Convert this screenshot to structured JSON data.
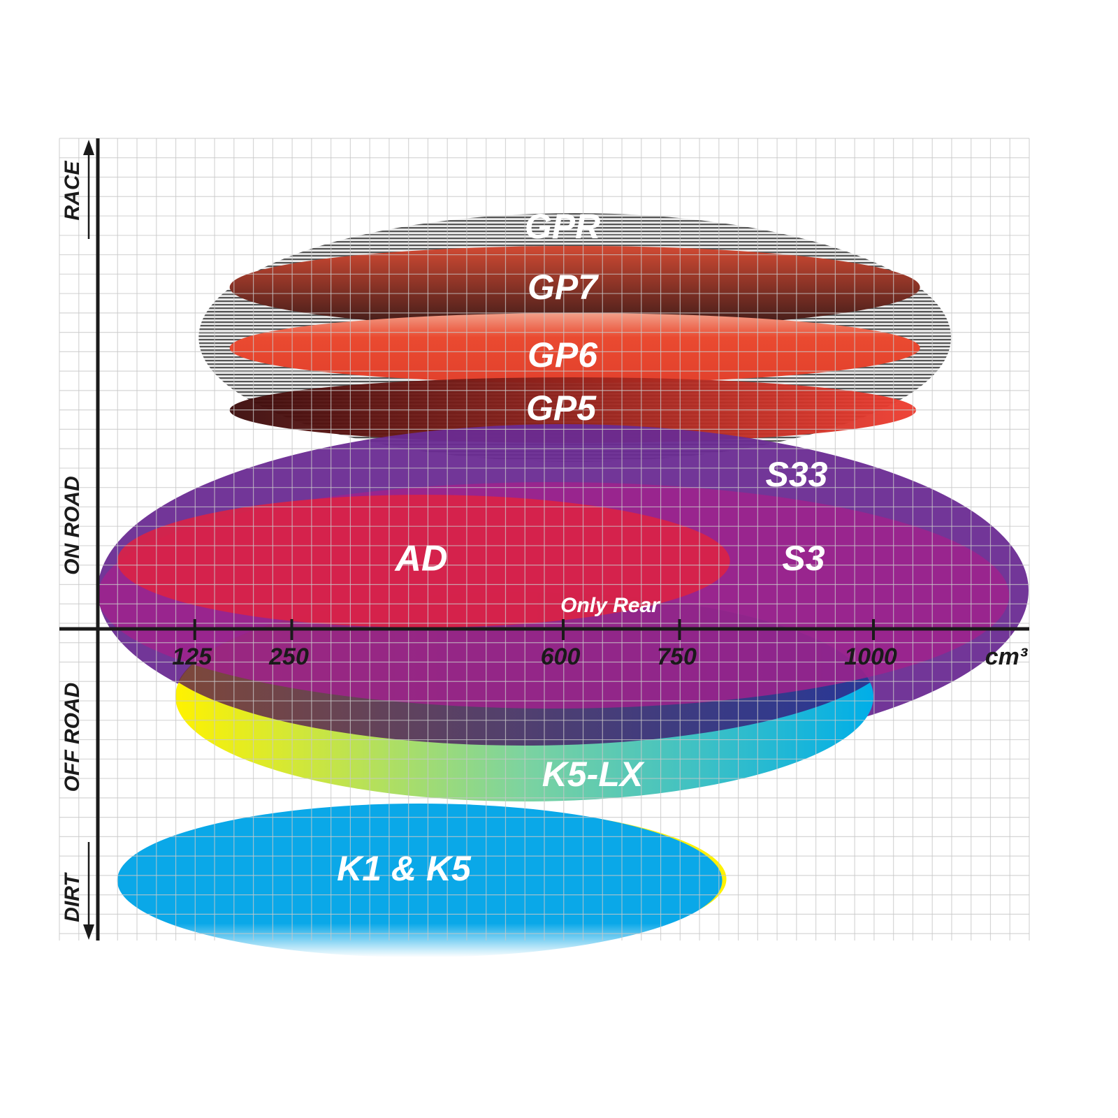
{
  "chart_data": {
    "type": "range-ellipse",
    "xlabel": "cm³",
    "x_ticks": [
      125,
      250,
      600,
      750,
      1000
    ],
    "x_tick_labels": [
      "125",
      "250",
      "600",
      "750",
      "1000"
    ],
    "xlim": [
      0,
      1200
    ],
    "y_levels": [
      "RACE",
      "ON ROAD",
      "OFF ROAD",
      "DIRT"
    ],
    "grid": true,
    "series": [
      {
        "name": "GPR",
        "x_range_cc": [
          130,
          1100
        ],
        "y_level": "RACE",
        "color": "#9a9a9a"
      },
      {
        "name": "GP7",
        "x_range_cc": [
          170,
          1060
        ],
        "y_level": "RACE",
        "color": "#b8422e"
      },
      {
        "name": "GP6",
        "x_range_cc": [
          170,
          1060
        ],
        "y_level": "RACE",
        "color": "#e8432f"
      },
      {
        "name": "GP5",
        "x_range_cc": [
          170,
          1055
        ],
        "y_level": "RACE / ON ROAD",
        "color": "#c0241d"
      },
      {
        "name": "S33",
        "x_range_cc": [
          0,
          1200
        ],
        "y_level": "ON ROAD",
        "color": "#6a2b92"
      },
      {
        "name": "S3",
        "x_range_cc": [
          0,
          1175
        ],
        "y_level": "ON ROAD",
        "color": "#a0228c"
      },
      {
        "name": "AD",
        "x_range_cc": [
          25,
          815
        ],
        "y_level": "ON ROAD",
        "color": "#dc2245"
      },
      {
        "name": "K5-LX",
        "x_range_cc": [
          100,
          1000
        ],
        "y_level": "OFF ROAD",
        "color": "#1fb8d8",
        "note": "Only Rear"
      },
      {
        "name": "K1 & K5",
        "x_range_cc": [
          25,
          805
        ],
        "y_level": "DIRT",
        "color": "#0aaae8"
      }
    ]
  }
}
